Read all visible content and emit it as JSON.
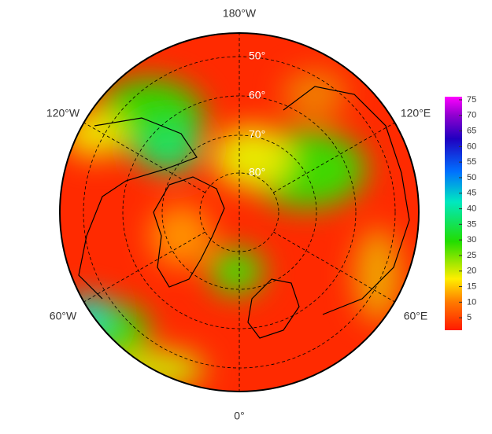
{
  "map": {
    "longitude_labels": [
      "180°W",
      "120°W",
      "120°E",
      "60°W",
      "60°E",
      "0°"
    ],
    "latitude_labels": [
      "50°",
      "60°",
      "70°",
      "80°"
    ]
  },
  "colorbar": {
    "range": [
      1,
      76
    ],
    "ticks": [
      5,
      10,
      15,
      20,
      25,
      30,
      35,
      40,
      45,
      50,
      55,
      60,
      65,
      70,
      75
    ]
  }
}
